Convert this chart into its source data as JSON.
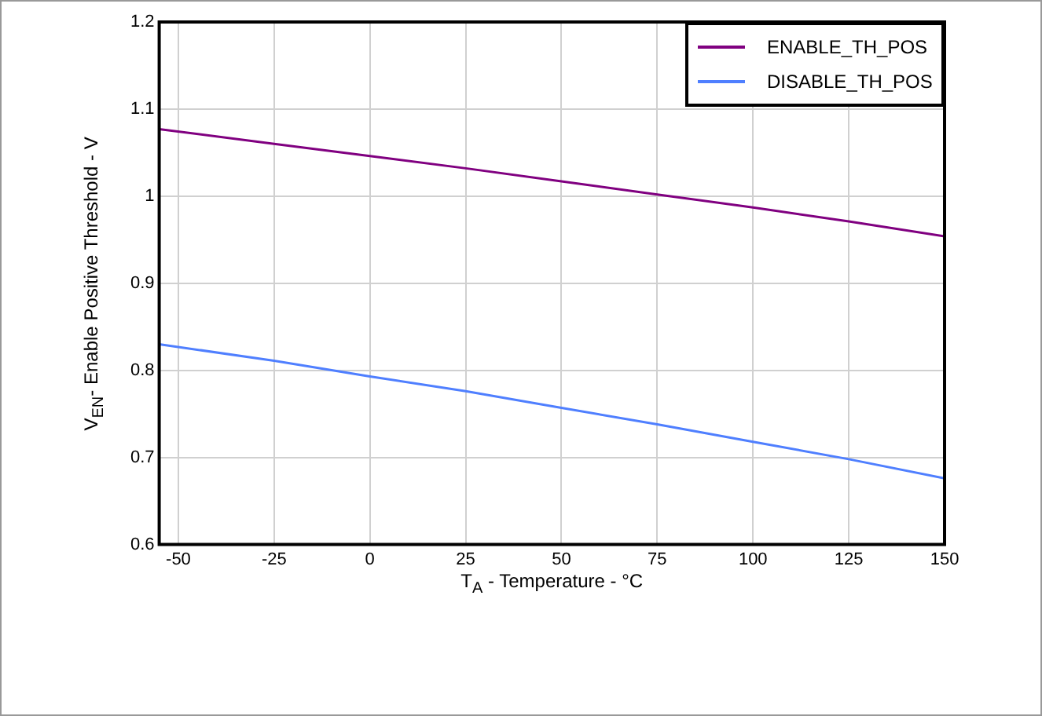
{
  "chart_data": {
    "type": "line",
    "xlabel": "T$_{A}$ - Temperature - °C",
    "ylabel": "V$_{EN}$- Enable Positive Threshold - V",
    "x": [
      -55,
      -25,
      0,
      25,
      50,
      75,
      100,
      125,
      150
    ],
    "series": [
      {
        "name": "ENABLE_TH_POS",
        "color": "#800080",
        "values": [
          1.077,
          1.06,
          1.046,
          1.032,
          1.017,
          1.002,
          0.987,
          0.971,
          0.954
        ]
      },
      {
        "name": "DISABLE_TH_POS",
        "color": "#4f7fff",
        "values": [
          0.83,
          0.811,
          0.793,
          0.776,
          0.757,
          0.738,
          0.718,
          0.698,
          0.676
        ]
      }
    ],
    "xlim": [
      -55,
      150
    ],
    "xticks": [
      -50,
      -25,
      0,
      25,
      50,
      75,
      100,
      125,
      150
    ],
    "ylim": [
      0.6,
      1.2
    ],
    "yticks": [
      0.6,
      0.7,
      0.8,
      0.9,
      1,
      1.1,
      1.2
    ],
    "grid": true,
    "legend": "top right",
    "marker": "none",
    "line_style": "solid"
  }
}
